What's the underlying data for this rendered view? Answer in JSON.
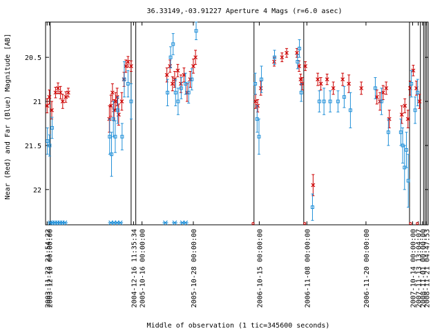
{
  "chart_data": {
    "type": "scatter",
    "title": "36.33149,-03.91227   Aperture 4 Mags (r=6.0 asec)",
    "xlabel": "Middle of observation (1 tic=345600 seconds)",
    "ylabel": "Near (Red) and Far (Blue) Magnitude [AB]",
    "y_reversed": true,
    "ylim": [
      22.4,
      20.1
    ],
    "yticks": [
      20.5,
      21,
      21.5,
      22
    ],
    "ytick_labels": [
      "20.5",
      "21",
      "21.5",
      "22"
    ],
    "x_tick_labels": [
      "2003-11-23 21:54:22",
      "2003-12-10 00:00:00",
      "2004-12-16 11:35:34",
      "2005-10-16 00:00:00",
      "2005-10-28 00:00:00",
      "2006-10-15 00:00:00",
      "2006-11-08 00:00:00",
      "2006-11-20 00:00:00",
      "2007-10-14 00:00:00",
      "2007-11-13 13:04:07",
      "2008-11-01 00:00:00",
      "2008-11-21 04:47:53"
    ],
    "grid": false,
    "legend": "none",
    "colors": {
      "near": "#cc0000",
      "far": "#1f8fd8",
      "axis": "#000000"
    },
    "series": [
      {
        "name": "Near",
        "marker": "x",
        "points": [
          {
            "x": 0.5,
            "y": 21.05,
            "err": 0.08
          },
          {
            "x": 1.2,
            "y": 20.95,
            "err": 0.08
          },
          {
            "x": 2.0,
            "y": 21.1,
            "err": 0.1
          },
          {
            "x": 3.2,
            "y": 20.9,
            "err": 0.06
          },
          {
            "x": 4.0,
            "y": 20.85,
            "err": 0.06
          },
          {
            "x": 4.8,
            "y": 20.9,
            "err": 0.07
          },
          {
            "x": 5.5,
            "y": 21.0,
            "err": 0.08
          },
          {
            "x": 6.5,
            "y": 20.95,
            "err": 0.06
          },
          {
            "x": 7.3,
            "y": 20.9,
            "err": 0.05
          },
          {
            "x": 20.5,
            "y": 21.2,
            "err": 0.15
          },
          {
            "x": 21.0,
            "y": 21.05,
            "err": 0.12
          },
          {
            "x": 21.5,
            "y": 20.9,
            "err": 0.1
          },
          {
            "x": 22.0,
            "y": 21.1,
            "err": 0.12
          },
          {
            "x": 22.5,
            "y": 21.0,
            "err": 0.1
          },
          {
            "x": 23.0,
            "y": 20.95,
            "err": 0.1
          },
          {
            "x": 23.5,
            "y": 21.15,
            "err": 0.12
          },
          {
            "x": 24.5,
            "y": 21.0,
            "err": 0.1
          },
          {
            "x": 25.2,
            "y": 20.75,
            "err": 0.08
          },
          {
            "x": 25.8,
            "y": 20.6,
            "err": 0.07
          },
          {
            "x": 26.5,
            "y": 20.55,
            "err": 0.06
          },
          {
            "x": 27.5,
            "y": 20.6,
            "err": 0.06
          },
          {
            "x": 39.0,
            "y": 20.7,
            "err": 0.08
          },
          {
            "x": 40.0,
            "y": 20.6,
            "err": 0.07
          },
          {
            "x": 40.8,
            "y": 20.8,
            "err": 0.08
          },
          {
            "x": 41.5,
            "y": 20.75,
            "err": 0.09
          },
          {
            "x": 42.5,
            "y": 20.65,
            "err": 0.07
          },
          {
            "x": 43.5,
            "y": 20.8,
            "err": 0.1
          },
          {
            "x": 44.5,
            "y": 20.7,
            "err": 0.08
          },
          {
            "x": 45.5,
            "y": 20.9,
            "err": 0.1
          },
          {
            "x": 46.5,
            "y": 20.75,
            "err": 0.09
          },
          {
            "x": 47.5,
            "y": 20.6,
            "err": 0.08
          },
          {
            "x": 48.2,
            "y": 20.5,
            "err": 0.08
          },
          {
            "x": 67.5,
            "y": 21.0,
            "err": 0.08
          },
          {
            "x": 68.2,
            "y": 21.05,
            "err": 0.07
          },
          {
            "x": 69.2,
            "y": 20.85,
            "err": 0.08
          },
          {
            "x": 73.5,
            "y": 20.55,
            "err": 0.05
          },
          {
            "x": 76.0,
            "y": 20.5,
            "err": 0.05
          },
          {
            "x": 77.5,
            "y": 20.45,
            "err": 0.05
          },
          {
            "x": 80.8,
            "y": 20.45,
            "err": 0.05
          },
          {
            "x": 81.5,
            "y": 20.6,
            "err": 0.06
          },
          {
            "x": 82.0,
            "y": 20.75,
            "err": 0.06
          },
          {
            "x": 82.5,
            "y": 20.8,
            "err": 0.07
          },
          {
            "x": 83.5,
            "y": 20.6,
            "err": 0.05
          },
          {
            "x": 86.0,
            "y": 21.95,
            "err": 0.12
          },
          {
            "x": 87.5,
            "y": 20.75,
            "err": 0.07
          },
          {
            "x": 88.5,
            "y": 20.8,
            "err": 0.07
          },
          {
            "x": 90.5,
            "y": 20.75,
            "err": 0.06
          },
          {
            "x": 92.5,
            "y": 20.85,
            "err": 0.07
          },
          {
            "x": 95.5,
            "y": 20.75,
            "err": 0.07
          },
          {
            "x": 97.5,
            "y": 20.8,
            "err": 0.1
          },
          {
            "x": 101.5,
            "y": 20.85,
            "err": 0.07
          },
          {
            "x": 106.5,
            "y": 20.95,
            "err": 0.08
          },
          {
            "x": 107.5,
            "y": 21.0,
            "err": 0.1
          },
          {
            "x": 108.5,
            "y": 20.9,
            "err": 0.08
          },
          {
            "x": 109.5,
            "y": 20.85,
            "err": 0.07
          },
          {
            "x": 110.5,
            "y": 21.2,
            "err": 0.1
          },
          {
            "x": 114.5,
            "y": 21.15,
            "err": 0.1
          },
          {
            "x": 115.5,
            "y": 21.05,
            "err": 0.08
          },
          {
            "x": 116.5,
            "y": 21.2,
            "err": 0.1
          },
          {
            "x": 117.2,
            "y": 20.85,
            "err": 0.08
          },
          {
            "x": 118.2,
            "y": 20.65,
            "err": 0.06
          },
          {
            "x": 119.2,
            "y": 20.85,
            "err": 0.08
          },
          {
            "x": 120.2,
            "y": 21.0,
            "err": 0.08
          }
        ]
      },
      {
        "name": "Far",
        "marker": "square",
        "points": [
          {
            "x": 0.6,
            "y": 21.45,
            "err": 0.15
          },
          {
            "x": 1.3,
            "y": 21.5,
            "err": 0.12
          },
          {
            "x": 2.1,
            "y": 21.3,
            "err": 0.12
          },
          {
            "x": 20.6,
            "y": 21.4,
            "err": 0.2
          },
          {
            "x": 21.2,
            "y": 21.6,
            "err": 0.25
          },
          {
            "x": 21.8,
            "y": 21.2,
            "err": 0.2
          },
          {
            "x": 22.4,
            "y": 21.4,
            "err": 0.18
          },
          {
            "x": 23.2,
            "y": 21.1,
            "err": 0.15
          },
          {
            "x": 24.6,
            "y": 21.4,
            "err": 0.15
          },
          {
            "x": 25.3,
            "y": 20.75,
            "err": 0.2
          },
          {
            "x": 26.5,
            "y": 20.8,
            "err": 0.15
          },
          {
            "x": 27.5,
            "y": 21.0,
            "err": 0.2
          },
          {
            "x": 39.2,
            "y": 20.9,
            "err": 0.15
          },
          {
            "x": 40.2,
            "y": 20.5,
            "err": 0.12
          },
          {
            "x": 41.0,
            "y": 20.35,
            "err": 0.12
          },
          {
            "x": 41.8,
            "y": 20.9,
            "err": 0.15
          },
          {
            "x": 42.6,
            "y": 21.0,
            "err": 0.15
          },
          {
            "x": 43.6,
            "y": 20.85,
            "err": 0.12
          },
          {
            "x": 45.0,
            "y": 20.8,
            "err": 0.12
          },
          {
            "x": 46.0,
            "y": 20.9,
            "err": 0.12
          },
          {
            "x": 47.0,
            "y": 20.75,
            "err": 0.12
          },
          {
            "x": 48.4,
            "y": 20.2,
            "err": 0.1
          },
          {
            "x": 67.4,
            "y": 20.8,
            "err": 0.12
          },
          {
            "x": 68.0,
            "y": 21.2,
            "err": 0.15
          },
          {
            "x": 68.6,
            "y": 21.4,
            "err": 0.2
          },
          {
            "x": 69.4,
            "y": 20.75,
            "err": 0.15
          },
          {
            "x": 73.6,
            "y": 20.5,
            "err": 0.08
          },
          {
            "x": 81.0,
            "y": 20.55,
            "err": 0.08
          },
          {
            "x": 81.6,
            "y": 20.4,
            "err": 0.1
          },
          {
            "x": 82.2,
            "y": 20.9,
            "err": 0.1
          },
          {
            "x": 85.8,
            "y": 22.2,
            "err": 0.15
          },
          {
            "x": 88.0,
            "y": 21.0,
            "err": 0.12
          },
          {
            "x": 89.5,
            "y": 21.0,
            "err": 0.15
          },
          {
            "x": 91.5,
            "y": 21.0,
            "err": 0.12
          },
          {
            "x": 94.0,
            "y": 21.0,
            "err": 0.12
          },
          {
            "x": 96.0,
            "y": 20.95,
            "err": 0.12
          },
          {
            "x": 98.0,
            "y": 21.1,
            "err": 0.2
          },
          {
            "x": 106.0,
            "y": 20.85,
            "err": 0.12
          },
          {
            "x": 108.0,
            "y": 21.0,
            "err": 0.15
          },
          {
            "x": 110.2,
            "y": 21.35,
            "err": 0.15
          },
          {
            "x": 114.2,
            "y": 21.35,
            "err": 0.15
          },
          {
            "x": 114.8,
            "y": 21.5,
            "err": 0.2
          },
          {
            "x": 115.4,
            "y": 21.75,
            "err": 0.25
          },
          {
            "x": 116.0,
            "y": 21.55,
            "err": 0.2
          },
          {
            "x": 116.6,
            "y": 21.9,
            "err": 0.3
          },
          {
            "x": 117.6,
            "y": 20.8,
            "err": 0.15
          },
          {
            "x": 118.8,
            "y": 21.1,
            "err": 0.15
          },
          {
            "x": 119.6,
            "y": 20.9,
            "err": 0.15
          }
        ]
      }
    ],
    "stars_at_bottom": [
      1.5,
      2.2,
      3.0,
      3.8,
      4.6,
      5.4,
      6.2,
      21.0,
      22.0,
      23.0,
      24.0,
      38.5,
      41.5,
      44.0,
      45.0
    ],
    "red_marks_at_bottom": [
      66.7,
      83.3,
      117.3,
      119.5
    ],
    "vertical_markers_x": [
      0,
      1.5,
      27.5,
      29.0,
      67.0,
      83.0,
      117.0,
      120.5,
      121.5,
      122.0,
      122.5
    ]
  }
}
